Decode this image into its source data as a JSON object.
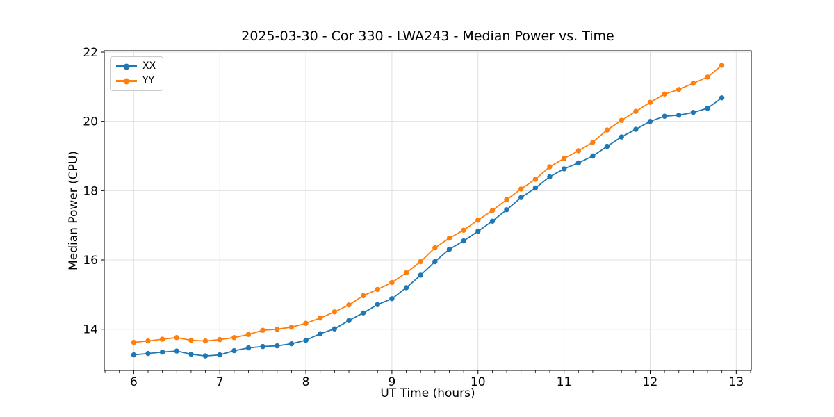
{
  "chart_data": {
    "type": "line",
    "title": "2025-03-30 - Cor 330 - LWA243 - Median Power vs. Time",
    "xlabel": "UT Time (hours)",
    "ylabel": "Median Power (CPU)",
    "xlim": [
      5.658,
      13.175
    ],
    "ylim": [
      12.81,
      22.04
    ],
    "x_ticks": [
      6,
      7,
      8,
      9,
      10,
      11,
      12,
      13
    ],
    "y_ticks": [
      14,
      16,
      18,
      20,
      22
    ],
    "x_minor_tick_step_hours": 0.1667,
    "grid": true,
    "grid_color": "#e0e0e0",
    "legend_position": "upper left",
    "marker": "circle",
    "x": [
      6.0,
      6.167,
      6.333,
      6.5,
      6.667,
      6.833,
      7.0,
      7.167,
      7.333,
      7.5,
      7.667,
      7.833,
      8.0,
      8.167,
      8.333,
      8.5,
      8.667,
      8.833,
      9.0,
      9.167,
      9.333,
      9.5,
      9.667,
      9.833,
      10.0,
      10.167,
      10.333,
      10.5,
      10.667,
      10.833,
      11.0,
      11.167,
      11.333,
      11.5,
      11.667,
      11.833,
      12.0,
      12.167,
      12.333,
      12.5,
      12.667,
      12.833
    ],
    "series": [
      {
        "name": "XX",
        "color": "#1f77b4",
        "values": [
          13.26,
          13.3,
          13.34,
          13.37,
          13.28,
          13.23,
          13.26,
          13.38,
          13.46,
          13.5,
          13.52,
          13.58,
          13.68,
          13.87,
          14.01,
          14.25,
          14.47,
          14.71,
          14.88,
          15.2,
          15.56,
          15.95,
          16.31,
          16.55,
          16.83,
          17.12,
          17.45,
          17.8,
          18.08,
          18.4,
          18.63,
          18.8,
          19.0,
          19.28,
          19.55,
          19.77,
          20.0,
          20.15,
          20.18,
          20.26,
          20.38,
          20.68
        ]
      },
      {
        "name": "YY",
        "color": "#ff7f0e",
        "values": [
          13.62,
          13.66,
          13.71,
          13.76,
          13.68,
          13.66,
          13.7,
          13.76,
          13.85,
          13.97,
          14.0,
          14.06,
          14.17,
          14.32,
          14.5,
          14.7,
          14.97,
          15.15,
          15.35,
          15.63,
          15.95,
          16.35,
          16.63,
          16.86,
          17.15,
          17.43,
          17.74,
          18.05,
          18.33,
          18.69,
          18.93,
          19.15,
          19.4,
          19.75,
          20.03,
          20.29,
          20.55,
          20.79,
          20.92,
          21.1,
          21.28,
          21.62
        ]
      }
    ]
  }
}
